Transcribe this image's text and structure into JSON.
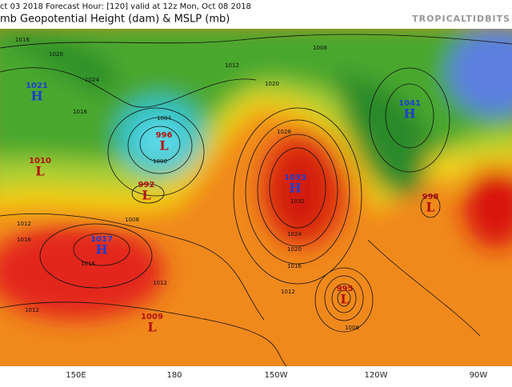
{
  "header": {
    "run_line": "ct 03 2018   Forecast Hour: [120]   valid at 12z Mon, Oct 08 2018",
    "title": "mb Geopotential Height (dam) & MSLP (mb)",
    "brand": "TROPICALTIDBITS"
  },
  "centers": [
    {
      "type": "H",
      "pressure": "1021"
    },
    {
      "type": "L",
      "pressure": "1010"
    },
    {
      "type": "L",
      "pressure": "996"
    },
    {
      "type": "L",
      "pressure": "992"
    },
    {
      "type": "H",
      "pressure": "1017"
    },
    {
      "type": "L",
      "pressure": "1009"
    },
    {
      "type": "H",
      "pressure": "1033"
    },
    {
      "type": "L",
      "pressure": "995"
    },
    {
      "type": "H",
      "pressure": "1041"
    },
    {
      "type": "L",
      "pressure": "998"
    }
  ],
  "isobar_labels": [
    "1016",
    "1020",
    "1024",
    "1016",
    "1012",
    "1004",
    "1000",
    "1008",
    "1016",
    "1012",
    "1028",
    "1032",
    "1024",
    "1020",
    "1016",
    "1012",
    "1008",
    "1012",
    "1016",
    "1012",
    "1008",
    "1020"
  ],
  "longitudes": [
    "150E",
    "180",
    "150W",
    "120W",
    "90W"
  ]
}
